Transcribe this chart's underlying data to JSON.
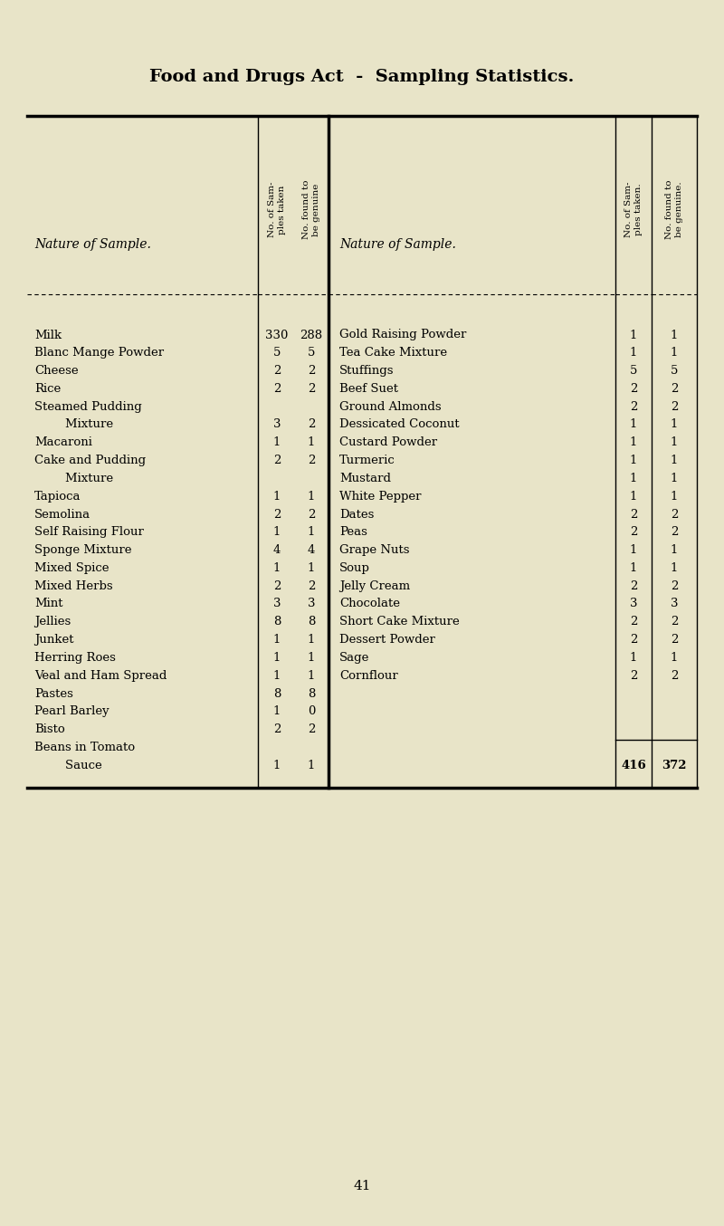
{
  "title": "Food and Drugs Act  -  Sampling Statistics.",
  "bg_color": "#e8e4c8",
  "header_col2": "No. of Sam-\nples taken",
  "header_col3": "No. found to\nbe genuine",
  "header_col5": "No. of Sam-\nples taken.",
  "header_col6": "No. found to\nbe genuine.",
  "left_rows": [
    [
      "Milk",
      "330",
      "288"
    ],
    [
      "Blanc Mange Powder",
      "5",
      "5"
    ],
    [
      "Cheese",
      "2",
      "2"
    ],
    [
      "Rice",
      "2",
      "2"
    ],
    [
      "Steamed Pudding",
      "",
      ""
    ],
    [
      "        Mixture",
      "3",
      "2"
    ],
    [
      "Macaroni",
      "1",
      "1"
    ],
    [
      "Cake and Pudding",
      "2",
      "2"
    ],
    [
      "        Mixture",
      "",
      ""
    ],
    [
      "Tapioca",
      "1",
      "1"
    ],
    [
      "Semolina",
      "2",
      "2"
    ],
    [
      "Self Raising Flour",
      "1",
      "1"
    ],
    [
      "Sponge Mixture",
      "4",
      "4"
    ],
    [
      "Mixed Spice",
      "1",
      "1"
    ],
    [
      "Mixed Herbs",
      "2",
      "2"
    ],
    [
      "Mint",
      "3",
      "3"
    ],
    [
      "Jellies",
      "8",
      "8"
    ],
    [
      "Junket",
      "1",
      "1"
    ],
    [
      "Herring Roes",
      "1",
      "1"
    ],
    [
      "Veal and Ham Spread",
      "1",
      "1"
    ],
    [
      "Pastes",
      "8",
      "8"
    ],
    [
      "Pearl Barley",
      "1",
      "0"
    ],
    [
      "Bisto",
      "2",
      "2"
    ],
    [
      "Beans in Tomato",
      "",
      ""
    ],
    [
      "        Sauce",
      "1",
      "1"
    ]
  ],
  "right_rows": [
    [
      "Gold Raising Powder",
      "1",
      "1"
    ],
    [
      "Tea Cake Mixture",
      "1",
      "1"
    ],
    [
      "Stuffings",
      "5",
      "5"
    ],
    [
      "Beef Suet",
      "2",
      "2"
    ],
    [
      "Ground Almonds",
      "2",
      "2"
    ],
    [
      "Dessicated Coconut",
      "1",
      "1"
    ],
    [
      "Custard Powder",
      "1",
      "1"
    ],
    [
      "Turmeric",
      "1",
      "1"
    ],
    [
      "Mustard",
      "1",
      "1"
    ],
    [
      "White Pepper",
      "1",
      "1"
    ],
    [
      "Dates",
      "2",
      "2"
    ],
    [
      "Peas",
      "2",
      "2"
    ],
    [
      "Grape Nuts",
      "1",
      "1"
    ],
    [
      "Soup",
      "1",
      "1"
    ],
    [
      "Jelly Cream",
      "2",
      "2"
    ],
    [
      "Chocolate",
      "3",
      "3"
    ],
    [
      "Short Cake Mixture",
      "2",
      "2"
    ],
    [
      "Dessert Powder",
      "2",
      "2"
    ],
    [
      "Sage",
      "1",
      "1"
    ],
    [
      "Cornflour",
      "2",
      "2"
    ],
    [
      "",
      "",
      ""
    ],
    [
      "",
      "",
      ""
    ],
    [
      "",
      "",
      ""
    ],
    [
      "",
      "",
      ""
    ],
    [
      "",
      "",
      ""
    ]
  ],
  "total_taken": "416",
  "total_genuine": "372",
  "page_number": "41"
}
